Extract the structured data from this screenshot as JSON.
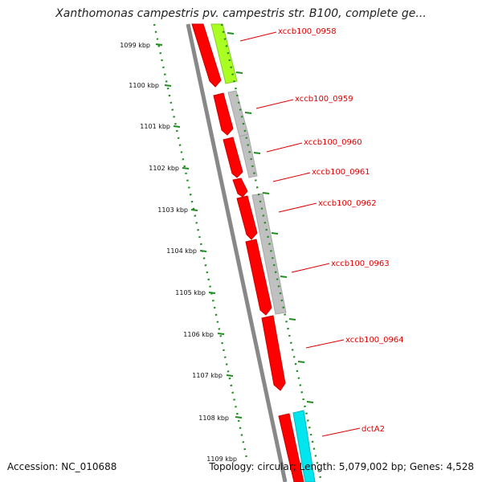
{
  "header": {
    "title": "Xanthomonas campestris pv. campestris str. B100, complete ge..."
  },
  "footer": {
    "accession": "Accession: NC_010688",
    "summary": "Topology: circular; Length: 5,079,002 bp; Genes: 4,528"
  },
  "scale": {
    "labels": [
      "1099 kbp",
      "1100 kbp",
      "1101 kbp",
      "1102 kbp",
      "1103 kbp",
      "1104 kbp",
      "1105 kbp",
      "1106 kbp",
      "1107 kbp",
      "1108 kbp",
      "1109 kbp"
    ]
  },
  "genes": {
    "labels": [
      "xccb100_0958",
      "xccb100_0959",
      "xccb100_0960",
      "xccb100_0961",
      "xccb100_0962",
      "xccb100_0963",
      "xccb100_0964",
      "dctA2"
    ]
  },
  "colors": {
    "cds": "#ff0000",
    "gene_gray": "#c0c0c0",
    "gene_green": "#aaff22",
    "gene_cyan": "#00e5ee",
    "tick": "#228b22",
    "backbone": "#888888",
    "label": "#e00000"
  }
}
